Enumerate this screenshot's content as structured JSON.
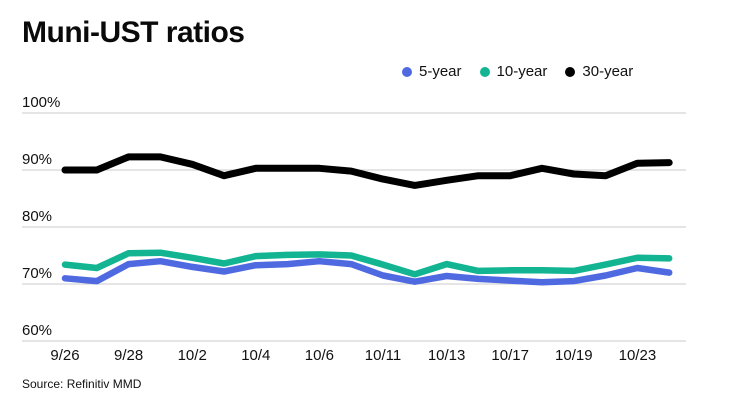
{
  "title": "Muni-UST ratios",
  "source": "Source: Refinitiv MMD",
  "legend": [
    {
      "label": "5-year",
      "color": "#4f6ae1"
    },
    {
      "label": "10-year",
      "color": "#12b492"
    },
    {
      "label": "30-year",
      "color": "#000000"
    }
  ],
  "colors": {
    "grid": "#cbcbcb",
    "text": "#111111",
    "background": "#ffffff"
  },
  "chart_data": {
    "type": "line",
    "title": "Muni-UST ratios",
    "xlabel": "",
    "ylabel": "",
    "ylim": [
      60,
      100
    ],
    "grid": true,
    "legend_position": "top-right",
    "yticks": [
      "100%",
      "90%",
      "80%",
      "70%",
      "60%"
    ],
    "ytick_values": [
      100,
      90,
      80,
      70,
      60
    ],
    "x": [
      "9/26",
      "9/27",
      "9/28",
      "9/29",
      "10/2",
      "10/3",
      "10/4",
      "10/5",
      "10/6",
      "10/10",
      "10/11",
      "10/12",
      "10/13",
      "10/16",
      "10/17",
      "10/18",
      "10/19",
      "10/20",
      "10/23",
      "10/24"
    ],
    "xticks": [
      "9/26",
      "9/28",
      "10/2",
      "10/4",
      "10/6",
      "10/11",
      "10/13",
      "10/17",
      "10/19",
      "10/23"
    ],
    "series": [
      {
        "name": "5-year",
        "color": "#4f6ae1",
        "values": [
          71.0,
          70.5,
          73.5,
          74.0,
          73.0,
          72.2,
          73.3,
          73.5,
          74.0,
          73.5,
          71.5,
          70.4,
          71.4,
          70.9,
          70.6,
          70.3,
          70.5,
          71.5,
          72.8,
          72.0
        ]
      },
      {
        "name": "10-year",
        "color": "#12b492",
        "values": [
          73.4,
          72.8,
          75.4,
          75.5,
          74.6,
          73.6,
          74.9,
          75.1,
          75.2,
          75.0,
          73.4,
          71.7,
          73.5,
          72.3,
          72.4,
          72.4,
          72.3,
          73.4,
          74.6,
          74.5
        ]
      },
      {
        "name": "30-year",
        "color": "#000000",
        "values": [
          90.0,
          90.0,
          92.3,
          92.3,
          91.0,
          89.0,
          90.3,
          90.3,
          90.3,
          89.8,
          88.4,
          87.3,
          88.2,
          89.0,
          89.0,
          90.3,
          89.3,
          89.0,
          91.2,
          91.3
        ]
      }
    ]
  }
}
